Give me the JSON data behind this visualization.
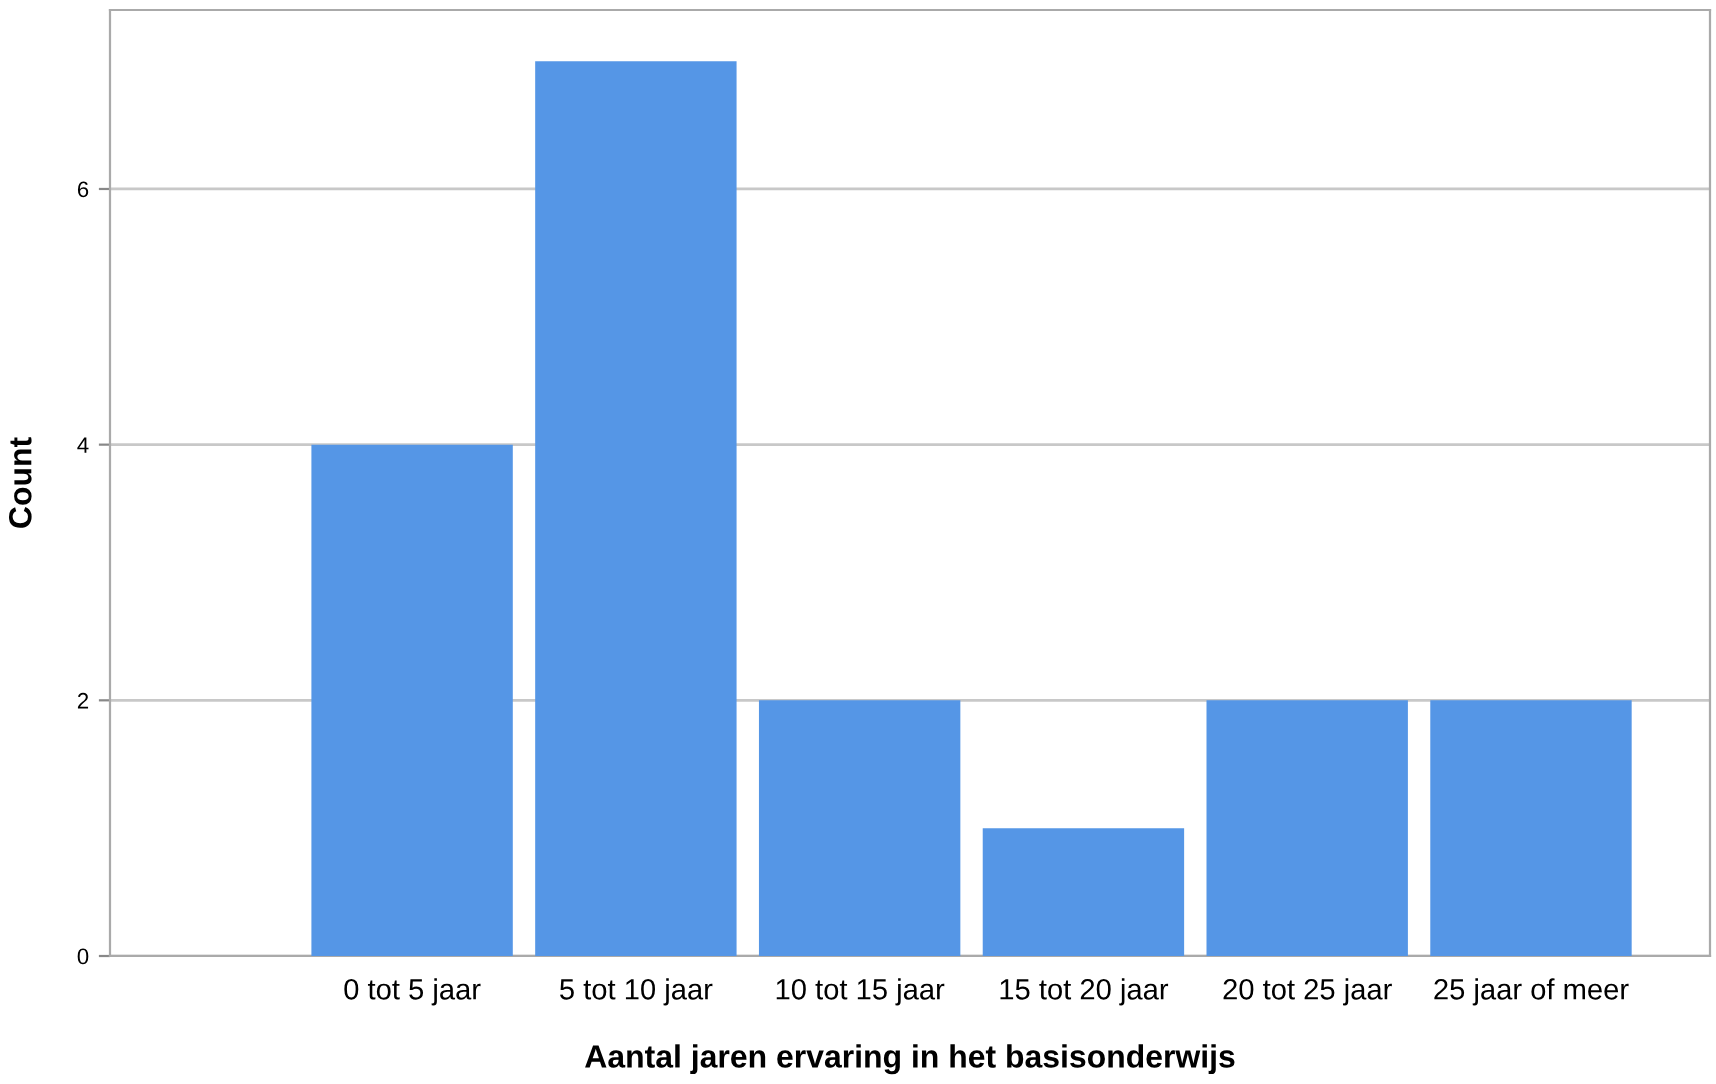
{
  "chart_data": {
    "type": "bar",
    "xlabel": "Aantal jaren ervaring in het basisonderwijs",
    "ylabel": "Count",
    "categories": [
      "0 tot 5 jaar",
      "5 tot 10 jaar",
      "10 tot 15 jaar",
      "15 tot 20 jaar",
      "20 tot 25 jaar",
      "25 jaar of meer"
    ],
    "values": [
      4,
      7,
      2,
      1,
      2,
      2
    ],
    "color": "#5596e6",
    "ylim": [
      0,
      7.4
    ],
    "yticks": [
      0,
      2,
      4,
      6
    ],
    "grid": "y"
  }
}
